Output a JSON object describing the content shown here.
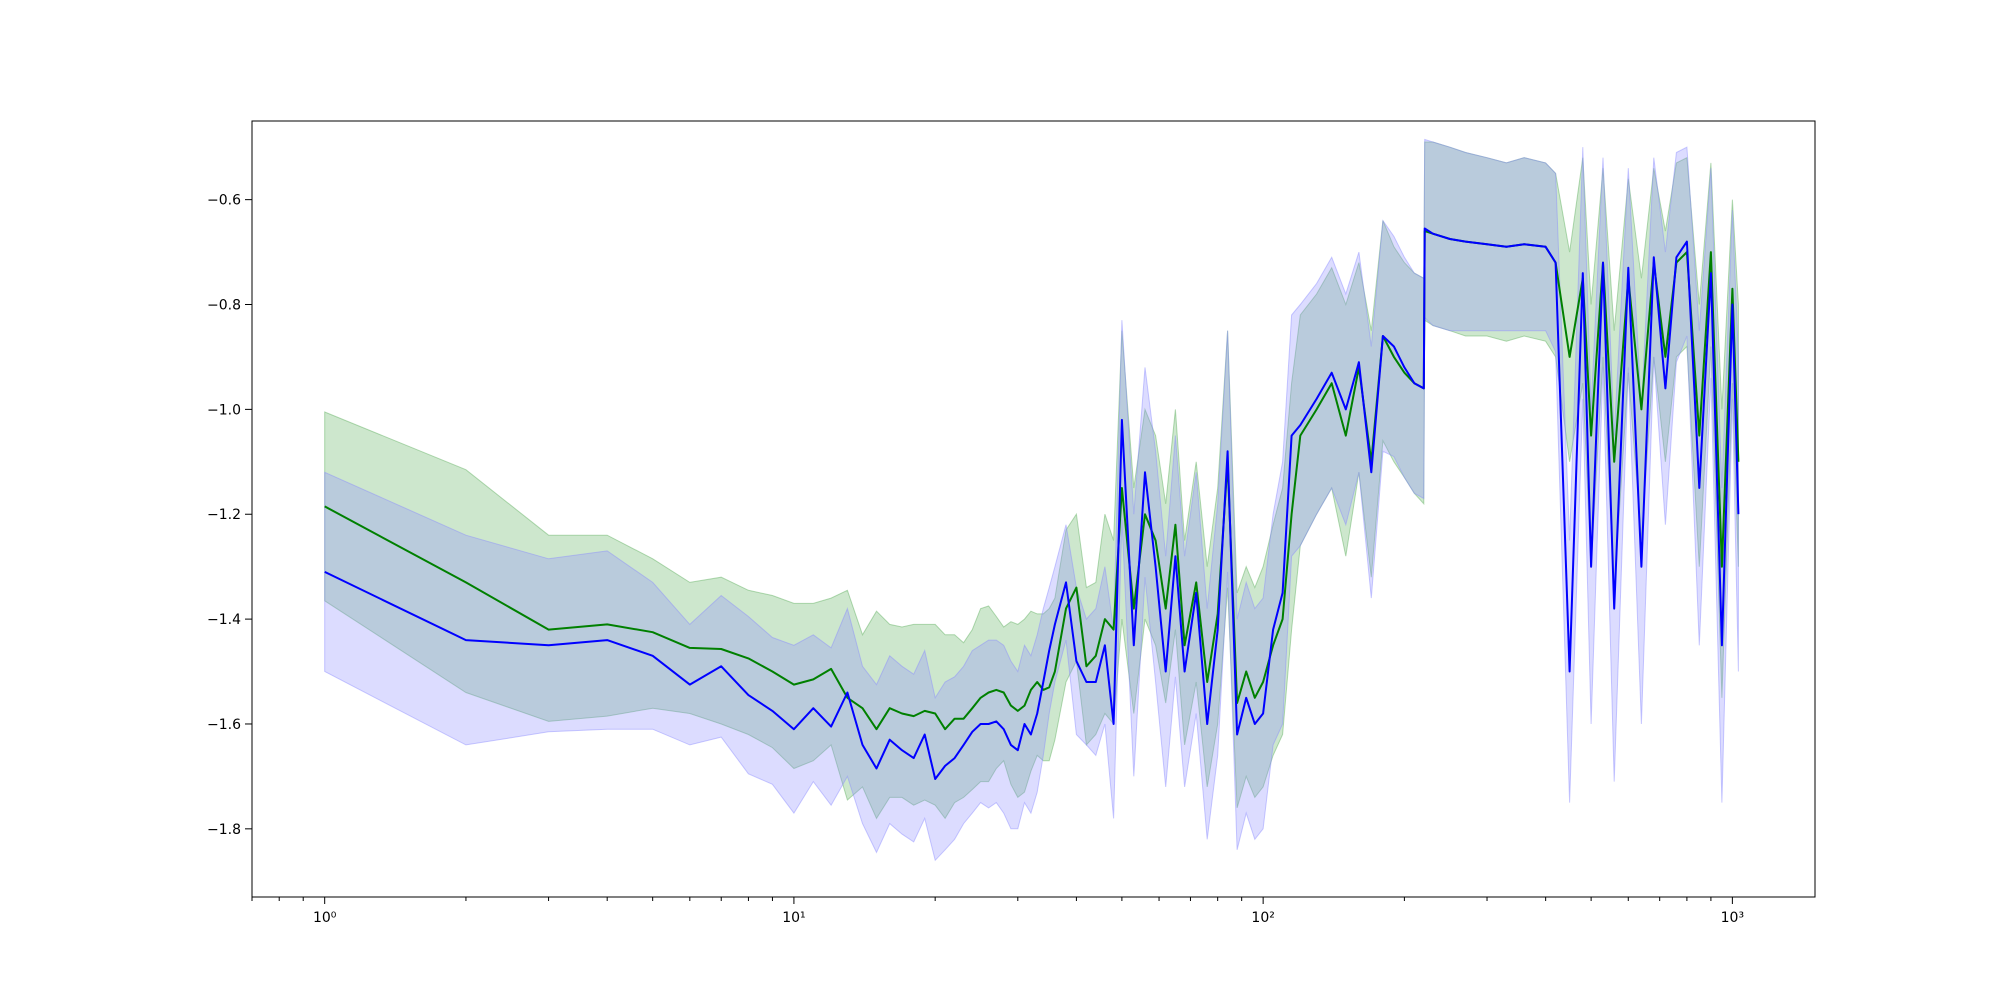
{
  "chart_data": {
    "type": "line",
    "title": "",
    "xlabel": "",
    "ylabel": "",
    "xscale": "log",
    "xlim": [
      0.7,
      1500
    ],
    "ylim": [
      -1.93,
      -0.45
    ],
    "grid": false,
    "legend": "none",
    "x_ticks": [
      {
        "value": 1,
        "label": "10⁰"
      },
      {
        "value": 10,
        "label": "10¹"
      },
      {
        "value": 100,
        "label": "10²"
      },
      {
        "value": 1000,
        "label": "10³"
      }
    ],
    "y_ticks": [
      {
        "value": -0.6,
        "label": "−0.6"
      },
      {
        "value": -0.8,
        "label": "−0.8"
      },
      {
        "value": -1.0,
        "label": "−1.0"
      },
      {
        "value": -1.2,
        "label": "−1.2"
      },
      {
        "value": -1.4,
        "label": "−1.4"
      },
      {
        "value": -1.6,
        "label": "−1.6"
      },
      {
        "value": -1.8,
        "label": "−1.8"
      }
    ],
    "series": [
      {
        "color": "#008000",
        "band_color": "#5aae5a",
        "x": [
          1,
          2,
          3,
          4,
          5,
          6,
          7,
          8,
          9,
          10,
          11,
          12,
          13,
          14,
          15,
          16,
          17,
          18,
          19,
          20,
          21,
          22,
          23,
          24,
          25,
          26,
          27,
          28,
          29,
          30,
          31,
          32,
          33,
          34,
          35,
          36,
          38,
          40,
          42,
          44,
          46,
          48,
          50,
          53,
          56,
          59,
          62,
          65,
          68,
          72,
          76,
          80,
          84,
          88,
          92,
          96,
          100,
          105,
          110,
          115,
          120,
          130,
          140,
          150,
          160,
          170,
          180,
          190,
          200,
          210,
          220,
          221,
          230,
          250,
          270,
          300,
          330,
          360,
          400,
          420,
          450,
          480,
          500,
          530,
          560,
          600,
          640,
          680,
          720,
          760,
          800,
          850,
          900,
          950,
          1000,
          1030
        ],
        "y": [
          -1.185,
          -1.33,
          -1.42,
          -1.41,
          -1.425,
          -1.455,
          -1.457,
          -1.475,
          -1.5,
          -1.525,
          -1.515,
          -1.495,
          -1.55,
          -1.57,
          -1.61,
          -1.57,
          -1.58,
          -1.585,
          -1.575,
          -1.58,
          -1.61,
          -1.59,
          -1.59,
          -1.57,
          -1.55,
          -1.54,
          -1.535,
          -1.54,
          -1.565,
          -1.575,
          -1.565,
          -1.535,
          -1.52,
          -1.535,
          -1.53,
          -1.5,
          -1.38,
          -1.34,
          -1.49,
          -1.47,
          -1.4,
          -1.42,
          -1.15,
          -1.38,
          -1.2,
          -1.25,
          -1.38,
          -1.22,
          -1.45,
          -1.33,
          -1.52,
          -1.39,
          -1.1,
          -1.56,
          -1.5,
          -1.55,
          -1.52,
          -1.45,
          -1.4,
          -1.2,
          -1.05,
          -1.0,
          -0.95,
          -1.05,
          -0.92,
          -1.1,
          -0.86,
          -0.9,
          -0.93,
          -0.95,
          -0.96,
          -0.66,
          -0.665,
          -0.675,
          -0.68,
          -0.685,
          -0.69,
          -0.685,
          -0.69,
          -0.72,
          -0.9,
          -0.75,
          -1.05,
          -0.72,
          -1.1,
          -0.75,
          -1.0,
          -0.72,
          -0.9,
          -0.72,
          -0.7,
          -1.05,
          -0.7,
          -1.3,
          -0.77,
          -1.1
        ],
        "upper": [
          -1.005,
          -1.115,
          -1.24,
          -1.24,
          -1.285,
          -1.33,
          -1.32,
          -1.345,
          -1.355,
          -1.37,
          -1.37,
          -1.36,
          -1.345,
          -1.43,
          -1.385,
          -1.41,
          -1.415,
          -1.41,
          -1.41,
          -1.41,
          -1.43,
          -1.43,
          -1.445,
          -1.42,
          -1.38,
          -1.375,
          -1.395,
          -1.415,
          -1.405,
          -1.41,
          -1.4,
          -1.385,
          -1.39,
          -1.39,
          -1.38,
          -1.36,
          -1.23,
          -1.2,
          -1.34,
          -1.33,
          -1.2,
          -1.25,
          -0.85,
          -1.15,
          -1.0,
          -1.05,
          -1.18,
          -1.0,
          -1.25,
          -1.1,
          -1.3,
          -1.15,
          -0.85,
          -1.35,
          -1.3,
          -1.34,
          -1.3,
          -1.22,
          -1.15,
          -0.95,
          -0.82,
          -0.78,
          -0.73,
          -0.8,
          -0.72,
          -0.85,
          -0.64,
          -0.69,
          -0.72,
          -0.74,
          -0.75,
          -0.49,
          -0.49,
          -0.5,
          -0.51,
          -0.52,
          -0.53,
          -0.52,
          -0.53,
          -0.55,
          -0.7,
          -0.52,
          -0.8,
          -0.54,
          -0.85,
          -0.56,
          -0.75,
          -0.54,
          -0.66,
          -0.53,
          -0.52,
          -0.8,
          -0.53,
          -1.0,
          -0.6,
          -0.8
        ],
        "lower": [
          -1.365,
          -1.54,
          -1.595,
          -1.585,
          -1.57,
          -1.58,
          -1.6,
          -1.62,
          -1.645,
          -1.685,
          -1.67,
          -1.64,
          -1.745,
          -1.72,
          -1.78,
          -1.74,
          -1.74,
          -1.755,
          -1.745,
          -1.755,
          -1.78,
          -1.75,
          -1.74,
          -1.725,
          -1.71,
          -1.71,
          -1.685,
          -1.67,
          -1.715,
          -1.74,
          -1.73,
          -1.69,
          -1.66,
          -1.67,
          -1.67,
          -1.63,
          -1.52,
          -1.48,
          -1.64,
          -1.62,
          -1.58,
          -1.6,
          -1.4,
          -1.58,
          -1.4,
          -1.45,
          -1.56,
          -1.42,
          -1.64,
          -1.52,
          -1.72,
          -1.6,
          -1.34,
          -1.76,
          -1.7,
          -1.74,
          -1.72,
          -1.66,
          -1.62,
          -1.42,
          -1.26,
          -1.2,
          -1.15,
          -1.28,
          -1.12,
          -1.32,
          -1.06,
          -1.1,
          -1.13,
          -1.16,
          -1.18,
          -0.83,
          -0.84,
          -0.85,
          -0.86,
          -0.86,
          -0.87,
          -0.86,
          -0.87,
          -0.9,
          -1.1,
          -0.95,
          -1.3,
          -0.9,
          -1.35,
          -0.93,
          -1.25,
          -0.9,
          -1.1,
          -0.9,
          -0.88,
          -1.3,
          -0.88,
          -1.55,
          -0.95,
          -1.3
        ]
      },
      {
        "color": "#0000ff",
        "band_color": "#8a8aff",
        "x": [
          1,
          2,
          3,
          4,
          5,
          6,
          7,
          8,
          9,
          10,
          11,
          12,
          13,
          14,
          15,
          16,
          17,
          18,
          19,
          20,
          21,
          22,
          23,
          24,
          25,
          26,
          27,
          28,
          29,
          30,
          31,
          32,
          33,
          34,
          35,
          36,
          38,
          40,
          42,
          44,
          46,
          48,
          50,
          53,
          56,
          59,
          62,
          65,
          68,
          72,
          76,
          80,
          84,
          88,
          92,
          96,
          100,
          105,
          110,
          115,
          120,
          130,
          140,
          150,
          160,
          170,
          180,
          190,
          200,
          210,
          220,
          221,
          230,
          250,
          270,
          300,
          330,
          360,
          400,
          420,
          450,
          480,
          500,
          530,
          560,
          600,
          640,
          680,
          720,
          760,
          800,
          850,
          900,
          950,
          1000,
          1030
        ],
        "y": [
          -1.31,
          -1.44,
          -1.45,
          -1.44,
          -1.47,
          -1.525,
          -1.49,
          -1.545,
          -1.575,
          -1.61,
          -1.57,
          -1.605,
          -1.54,
          -1.64,
          -1.685,
          -1.63,
          -1.65,
          -1.665,
          -1.62,
          -1.705,
          -1.68,
          -1.665,
          -1.64,
          -1.615,
          -1.6,
          -1.6,
          -1.595,
          -1.61,
          -1.64,
          -1.65,
          -1.6,
          -1.62,
          -1.58,
          -1.52,
          -1.46,
          -1.41,
          -1.33,
          -1.48,
          -1.52,
          -1.52,
          -1.45,
          -1.6,
          -1.02,
          -1.45,
          -1.12,
          -1.3,
          -1.5,
          -1.28,
          -1.5,
          -1.35,
          -1.6,
          -1.42,
          -1.08,
          -1.62,
          -1.55,
          -1.6,
          -1.58,
          -1.42,
          -1.35,
          -1.05,
          -1.03,
          -0.98,
          -0.93,
          -1.0,
          -0.91,
          -1.12,
          -0.86,
          -0.88,
          -0.92,
          -0.95,
          -0.96,
          -0.655,
          -0.665,
          -0.675,
          -0.68,
          -0.685,
          -0.69,
          -0.685,
          -0.69,
          -0.72,
          -1.5,
          -0.74,
          -1.3,
          -0.72,
          -1.38,
          -0.73,
          -1.3,
          -0.71,
          -0.96,
          -0.71,
          -0.68,
          -1.15,
          -0.74,
          -1.45,
          -0.8,
          -1.2
        ],
        "upper": [
          -1.12,
          -1.24,
          -1.285,
          -1.27,
          -1.33,
          -1.41,
          -1.355,
          -1.395,
          -1.435,
          -1.45,
          -1.43,
          -1.455,
          -1.38,
          -1.49,
          -1.525,
          -1.47,
          -1.49,
          -1.505,
          -1.46,
          -1.55,
          -1.52,
          -1.51,
          -1.49,
          -1.46,
          -1.45,
          -1.44,
          -1.44,
          -1.45,
          -1.48,
          -1.5,
          -1.45,
          -1.47,
          -1.43,
          -1.38,
          -1.34,
          -1.3,
          -1.22,
          -1.34,
          -1.4,
          -1.38,
          -1.3,
          -1.42,
          -0.83,
          -1.2,
          -0.92,
          -1.08,
          -1.28,
          -1.05,
          -1.28,
          -1.12,
          -1.38,
          -1.18,
          -0.85,
          -1.4,
          -1.33,
          -1.38,
          -1.36,
          -1.2,
          -1.1,
          -0.82,
          -0.8,
          -0.76,
          -0.71,
          -0.78,
          -0.7,
          -0.88,
          -0.64,
          -0.67,
          -0.71,
          -0.74,
          -0.75,
          -0.485,
          -0.49,
          -0.5,
          -0.51,
          -0.52,
          -0.53,
          -0.52,
          -0.53,
          -0.55,
          -1.25,
          -0.5,
          -1.0,
          -0.52,
          -1.05,
          -0.54,
          -1.0,
          -0.52,
          -0.7,
          -0.51,
          -0.5,
          -0.85,
          -0.54,
          -1.15,
          -0.62,
          -0.9
        ],
        "lower": [
          -1.5,
          -1.64,
          -1.615,
          -1.61,
          -1.61,
          -1.64,
          -1.625,
          -1.695,
          -1.715,
          -1.77,
          -1.71,
          -1.755,
          -1.7,
          -1.79,
          -1.845,
          -1.79,
          -1.81,
          -1.825,
          -1.78,
          -1.86,
          -1.84,
          -1.82,
          -1.79,
          -1.77,
          -1.75,
          -1.76,
          -1.75,
          -1.77,
          -1.8,
          -1.8,
          -1.75,
          -1.77,
          -1.73,
          -1.66,
          -1.58,
          -1.52,
          -1.44,
          -1.62,
          -1.64,
          -1.66,
          -1.6,
          -1.78,
          -1.21,
          -1.7,
          -1.32,
          -1.52,
          -1.72,
          -1.51,
          -1.72,
          -1.58,
          -1.82,
          -1.66,
          -1.31,
          -1.84,
          -1.77,
          -1.82,
          -1.8,
          -1.64,
          -1.6,
          -1.28,
          -1.26,
          -1.2,
          -1.15,
          -1.22,
          -1.12,
          -1.36,
          -1.08,
          -1.09,
          -1.13,
          -1.16,
          -1.17,
          -0.825,
          -0.84,
          -0.85,
          -0.85,
          -0.85,
          -0.85,
          -0.85,
          -0.85,
          -0.89,
          -1.75,
          -0.98,
          -1.6,
          -0.92,
          -1.71,
          -0.92,
          -1.6,
          -0.9,
          -1.22,
          -0.91,
          -0.86,
          -1.45,
          -0.94,
          -1.75,
          -0.98,
          -1.5
        ]
      }
    ]
  }
}
